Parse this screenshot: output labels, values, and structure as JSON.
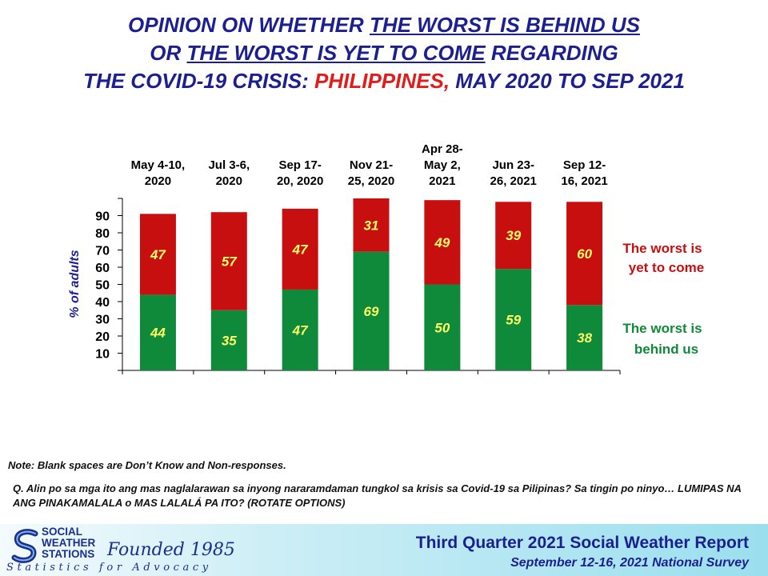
{
  "title": {
    "p1": "OPINION ON WHETHER ",
    "u1": "THE WORST IS BEHIND US",
    "p2": "OR ",
    "u2": "THE WORST IS YET TO COME",
    "p3": " REGARDING",
    "p4": "THE COVID-19 CRISIS: ",
    "red": "PHILIPPINES,",
    "p5": " MAY 2020 TO SEP 2021"
  },
  "chart_data": {
    "type": "bar",
    "stacked": true,
    "categories": [
      [
        "May 4-10,",
        "2020"
      ],
      [
        "Jul 3-6,",
        "2020"
      ],
      [
        "Sep 17-",
        "20, 2020"
      ],
      [
        "Nov 21-",
        "25, 2020"
      ],
      [
        "Apr 28-",
        "May 2,",
        "2021"
      ],
      [
        "Jun 23-",
        "26, 2021"
      ],
      [
        "Sep 12-",
        "16, 2021"
      ]
    ],
    "series": [
      {
        "name": "The worst is behind us",
        "legend_lines": [
          "The worst is",
          "behind us"
        ],
        "values": [
          44,
          35,
          47,
          69,
          50,
          59,
          38
        ],
        "color": "#0f8a3a"
      },
      {
        "name": "The worst is yet to come",
        "legend_lines": [
          "The worst is",
          "yet to come"
        ],
        "values": [
          47,
          57,
          47,
          31,
          49,
          39,
          60
        ],
        "color": "#c80f10"
      }
    ],
    "ylabel": "% of adults",
    "yticks": [
      10,
      20,
      30,
      40,
      50,
      60,
      70,
      80,
      90
    ],
    "ylim": [
      0,
      100
    ],
    "label_color": "#ffff66",
    "legend_placement": "right"
  },
  "note": "Note: Blank spaces are Don’t Know and Non-responses.",
  "question": "Q. Alin po sa mga ito ang mas naglalarawan sa inyong nararamdaman tungkol sa krisis sa Covid-19 sa Pilipinas? Sa tingin po ninyo… LUMIPAS NA ANG PINAKAMALALA o MAS LALALÁ PA ITO? (ROTATE OPTIONS)",
  "footer": {
    "logo_lines": [
      "SOCIAL",
      "WEATHER",
      "STATIONS"
    ],
    "founded": "Founded 1985",
    "tagline": "Statistics for Advocacy",
    "report": "Third Quarter 2021 Social Weather Report",
    "survey": "September 12-16, 2021 National Survey"
  }
}
